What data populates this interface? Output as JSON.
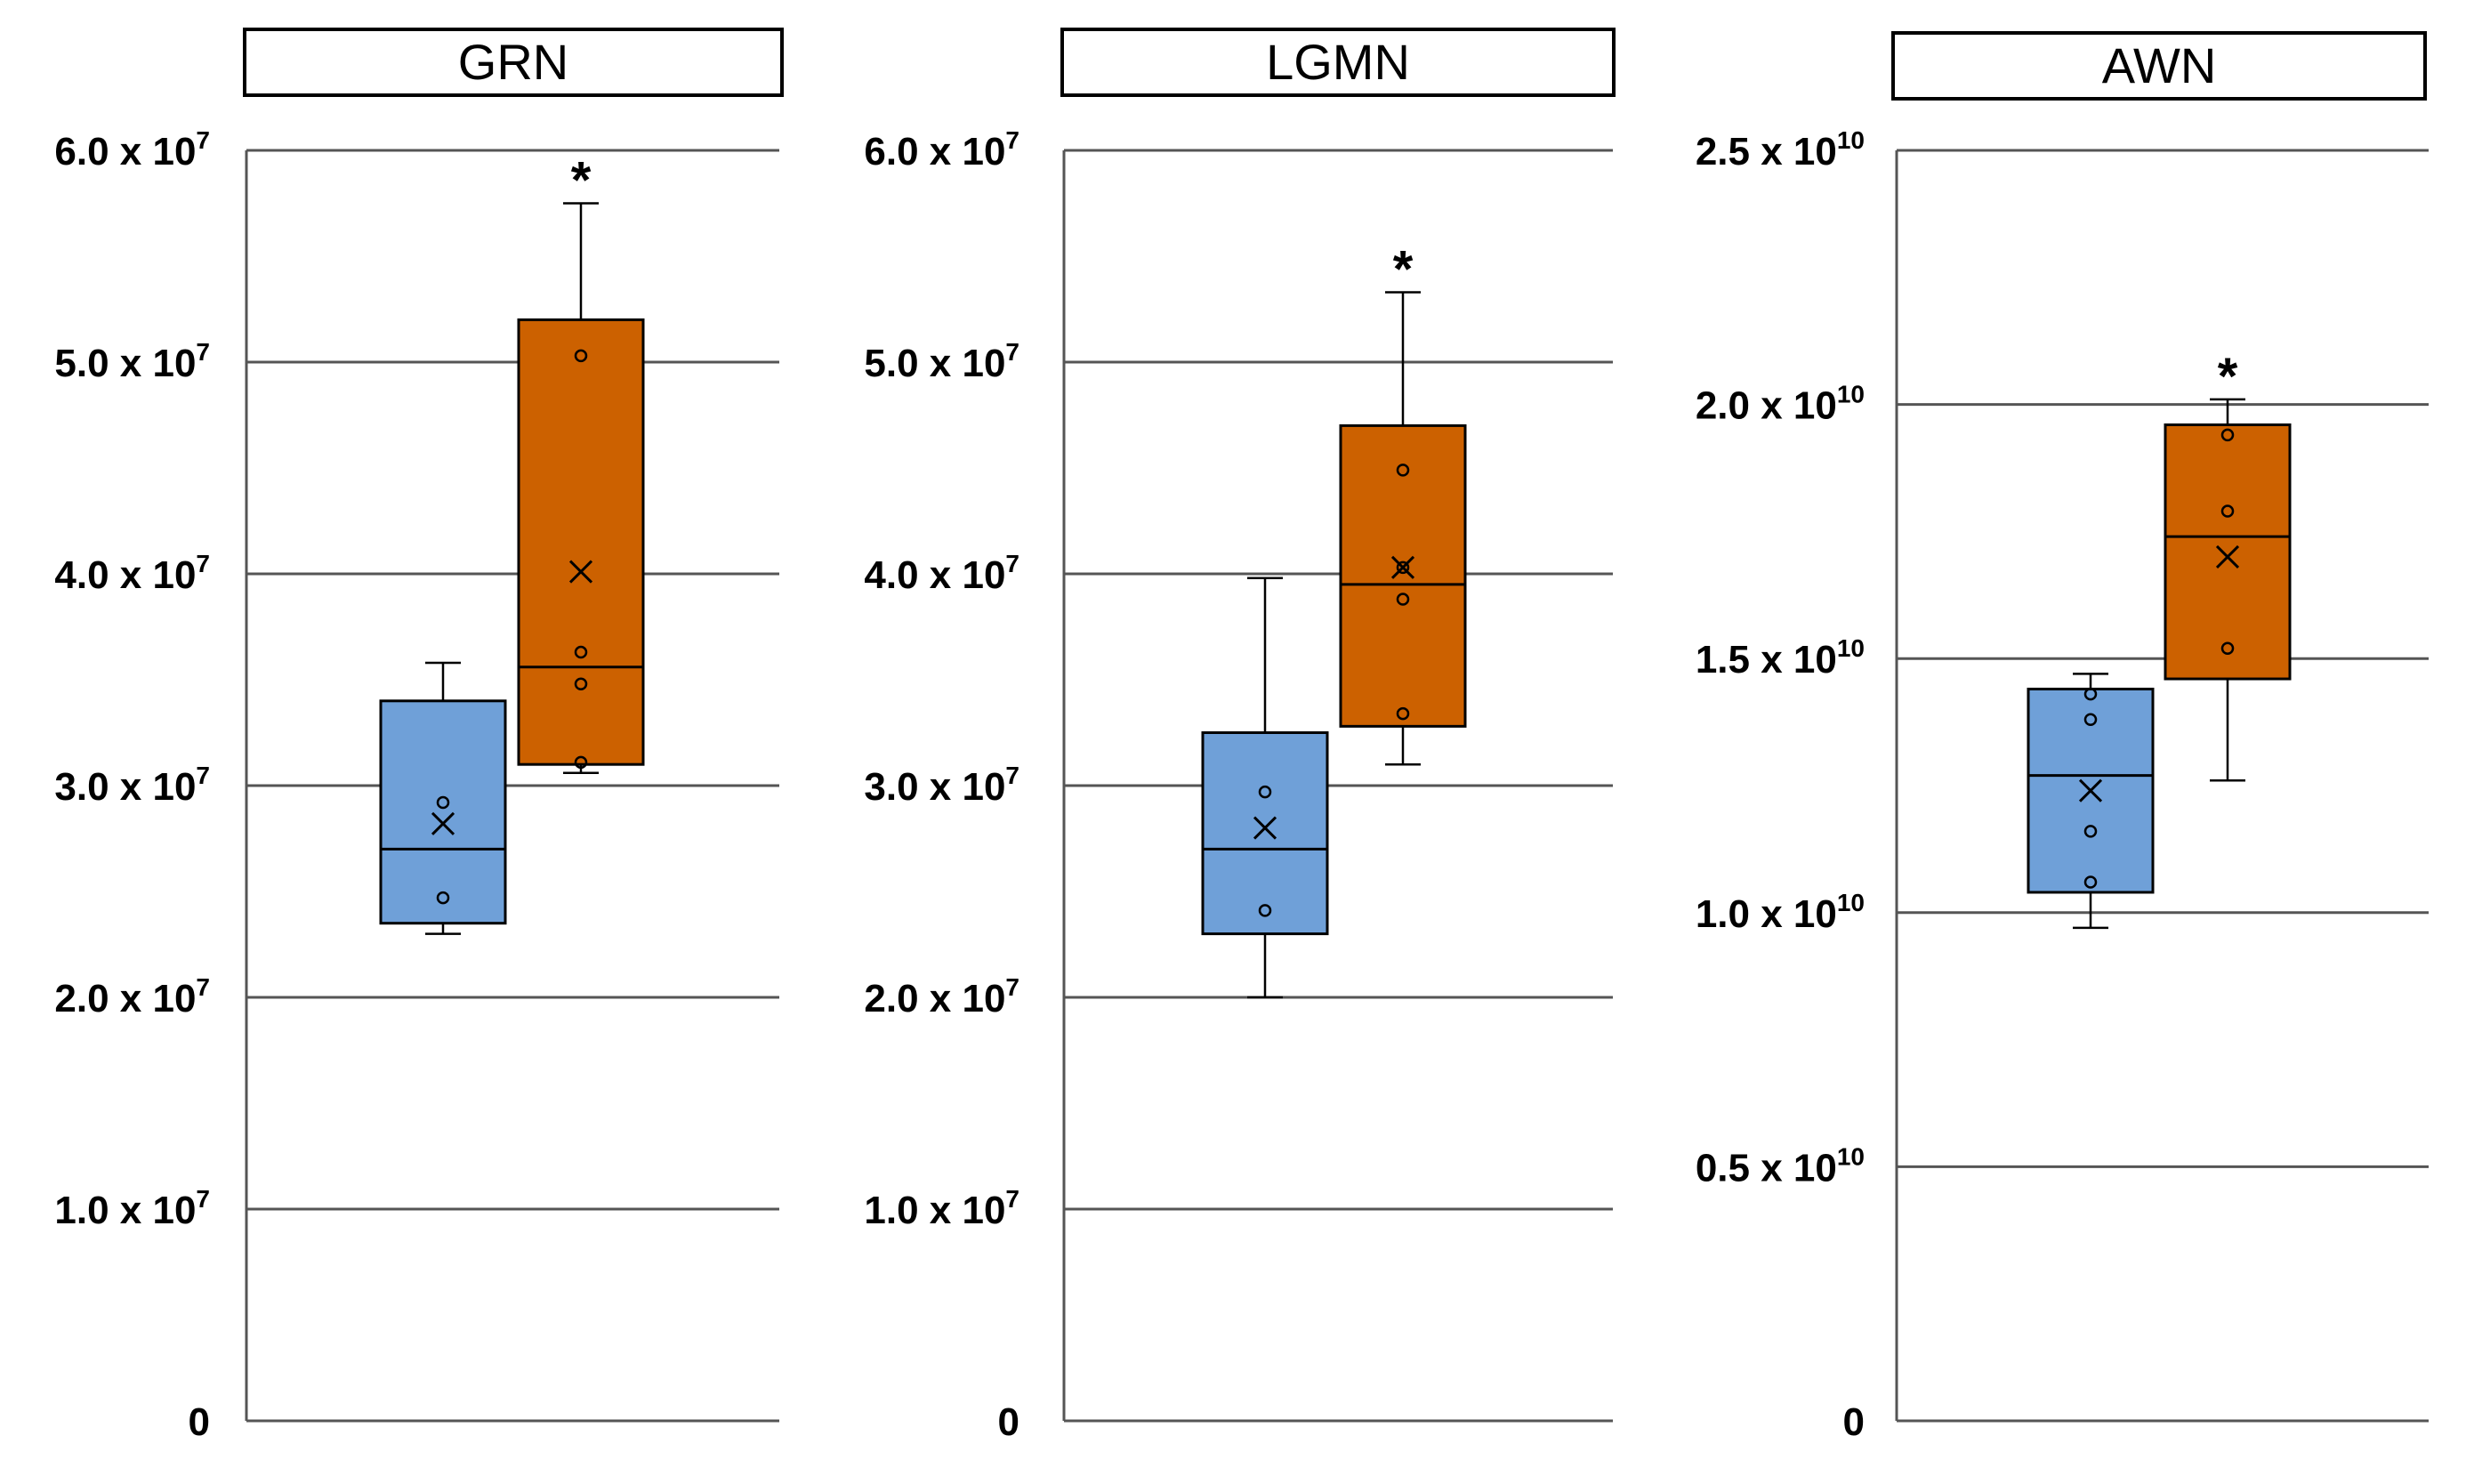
{
  "chart_data": [
    {
      "type": "box",
      "title": "GRN",
      "ylim": [
        0,
        60000000
      ],
      "yticks": [
        {
          "value": 0,
          "mantissa": "0",
          "exp": ""
        },
        {
          "value": 10000000,
          "mantissa": "1.0 x 10",
          "exp": "7"
        },
        {
          "value": 20000000,
          "mantissa": "2.0 x 10",
          "exp": "7"
        },
        {
          "value": 30000000,
          "mantissa": "3.0 x 10",
          "exp": "7"
        },
        {
          "value": 40000000,
          "mantissa": "4.0 x 10",
          "exp": "7"
        },
        {
          "value": 50000000,
          "mantissa": "5.0 x 10",
          "exp": "7"
        },
        {
          "value": 60000000,
          "mantissa": "6.0 x 10",
          "exp": "7"
        }
      ],
      "grid": true,
      "boxes": [
        {
          "color": "#6fa0d8",
          "whisker_low": 23000000,
          "q1": 23500000,
          "median": 27000000,
          "q3": 34000000,
          "whisker_high": 35800000,
          "mean": 28200000,
          "points": [
            29200000,
            24700000
          ],
          "significant": false
        },
        {
          "color": "#cc6100",
          "whisker_low": 30600000,
          "q1": 31000000,
          "median": 35600000,
          "q3": 52000000,
          "whisker_high": 57500000,
          "mean": 40100000,
          "points": [
            50300000,
            36300000,
            34800000,
            31100000
          ],
          "significant": true
        }
      ]
    },
    {
      "type": "box",
      "title": "LGMN",
      "ylim": [
        0,
        60000000
      ],
      "yticks": [
        {
          "value": 0,
          "mantissa": "0",
          "exp": ""
        },
        {
          "value": 10000000,
          "mantissa": "1.0 x 10",
          "exp": "7"
        },
        {
          "value": 20000000,
          "mantissa": "2.0 x 10",
          "exp": "7"
        },
        {
          "value": 30000000,
          "mantissa": "3.0 x 10",
          "exp": "7"
        },
        {
          "value": 40000000,
          "mantissa": "4.0 x 10",
          "exp": "7"
        },
        {
          "value": 50000000,
          "mantissa": "5.0 x 10",
          "exp": "7"
        },
        {
          "value": 60000000,
          "mantissa": "6.0 x 10",
          "exp": "7"
        }
      ],
      "grid": true,
      "boxes": [
        {
          "color": "#6fa0d8",
          "whisker_low": 20000000,
          "q1": 23000000,
          "median": 27000000,
          "q3": 32500000,
          "whisker_high": 39800000,
          "mean": 28000000,
          "points": [
            29700000,
            24100000
          ],
          "significant": false
        },
        {
          "color": "#cc6100",
          "whisker_low": 31000000,
          "q1": 32800000,
          "median": 39500000,
          "q3": 47000000,
          "whisker_high": 53300000,
          "mean": 40300000,
          "points": [
            44900000,
            40300000,
            38800000,
            33400000
          ],
          "significant": true
        }
      ]
    },
    {
      "type": "box",
      "title": "AWN",
      "ylim": [
        0,
        25000000000
      ],
      "yticks": [
        {
          "value": 0,
          "mantissa": "0",
          "exp": ""
        },
        {
          "value": 5000000000,
          "mantissa": "0.5 x 10",
          "exp": "10"
        },
        {
          "value": 10000000000,
          "mantissa": "1.0 x 10",
          "exp": "10"
        },
        {
          "value": 15000000000,
          "mantissa": "1.5 x 10",
          "exp": "10"
        },
        {
          "value": 20000000000,
          "mantissa": "2.0 x 10",
          "exp": "10"
        },
        {
          "value": 25000000000,
          "mantissa": "2.5 x 10",
          "exp": "10"
        }
      ],
      "grid": true,
      "boxes": [
        {
          "color": "#6fa0d8",
          "whisker_low": 9700000000,
          "q1": 10400000000,
          "median": 12700000000,
          "q3": 14400000000,
          "whisker_high": 14700000000,
          "mean": 12400000000,
          "points": [
            14300000000,
            13800000000,
            11600000000,
            10600000000
          ],
          "significant": false
        },
        {
          "color": "#cc6100",
          "whisker_low": 12600000000,
          "q1": 14600000000,
          "median": 17400000000,
          "q3": 19600000000,
          "whisker_high": 20100000000,
          "mean": 17000000000,
          "points": [
            19400000000,
            17900000000,
            15200000000
          ],
          "significant": true
        }
      ]
    }
  ],
  "significance_marker": "*"
}
